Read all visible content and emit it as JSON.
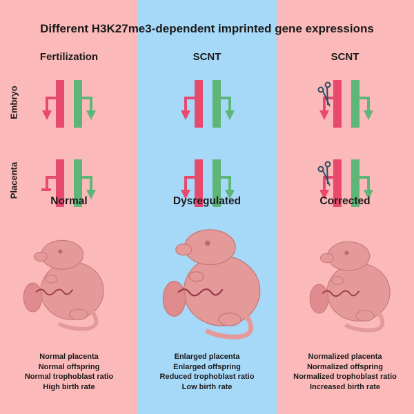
{
  "title": "Different H3K27me3-dependent imprinted gene expressions",
  "row_labels": [
    "Embryo",
    "Placenta"
  ],
  "columns": [
    {
      "header": "Fertilization",
      "result": "Normal",
      "outcomes": [
        "Normal placenta",
        "Normal offspring",
        "Normal trophoblast ratio",
        "High birth rate"
      ]
    },
    {
      "header": "SCNT",
      "result": "Dysregulated",
      "outcomes": [
        "Enlarged placenta",
        "Enlarged offspring",
        "Reduced trophoblast ratio",
        "Low birth rate"
      ]
    },
    {
      "header": "SCNT",
      "result": "Corrected",
      "outcomes": [
        "Normalized placenta",
        "Normalized offspring",
        "Normalized trophoblast ratio",
        "Increased birth rate"
      ]
    }
  ],
  "colors": {
    "background_side": "#fbb9b9",
    "background_middle": "#a6d8f8",
    "maternal_allele": "#e84a6e",
    "paternal_allele": "#5db677",
    "scissors": "#2d4a66",
    "pup": "#e49a98"
  },
  "icons": [
    "scissors-icon",
    "arrow-down-icon",
    "blocked-transcription-icon",
    "mouse-pup-icon"
  ]
}
